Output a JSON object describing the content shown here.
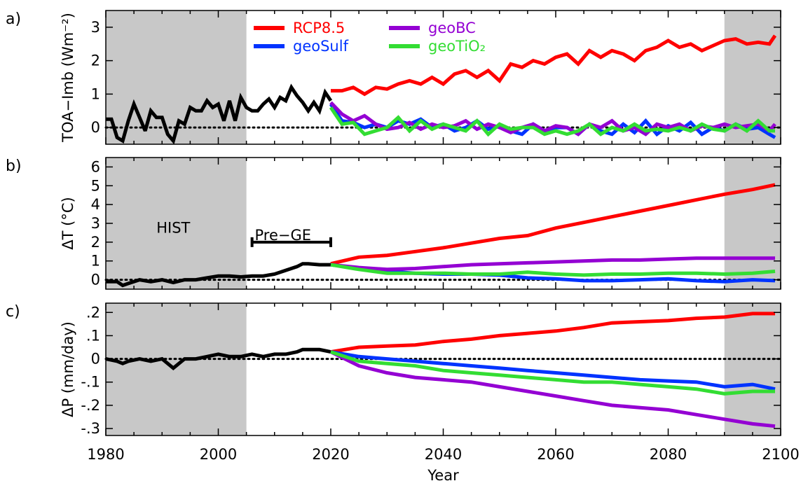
{
  "chart_data": [
    {
      "type": "line",
      "panel_label": "a)",
      "ylabel": "TOA−Imb (Wm⁻²)",
      "xlim": [
        1980,
        2100
      ],
      "ylim": [
        -0.5,
        3.5
      ],
      "yticks": [
        0,
        1,
        2,
        3
      ],
      "ytick_labels": [
        "0",
        "1",
        "2",
        "3"
      ],
      "shaded_ranges": [
        [
          1980,
          2005
        ],
        [
          2090,
          2100
        ]
      ],
      "zero_line": true,
      "legend": {
        "placement": "top-center",
        "columns": 2
      },
      "series": [
        {
          "name": "",
          "color": "#000000",
          "x": [
            1980,
            1981,
            1982,
            1983,
            1984,
            1985,
            1986,
            1987,
            1988,
            1989,
            1990,
            1991,
            1992,
            1993,
            1994,
            1995,
            1996,
            1997,
            1998,
            1999,
            2000,
            2001,
            2002,
            2003,
            2004,
            2005,
            2006,
            2007,
            2008,
            2009,
            2010,
            2011,
            2012,
            2013,
            2014,
            2015,
            2016,
            2017,
            2018,
            2019,
            2020
          ],
          "y": [
            0.25,
            0.25,
            -0.3,
            -0.4,
            0.2,
            0.7,
            0.3,
            -0.1,
            0.5,
            0.3,
            0.3,
            -0.2,
            -0.4,
            0.2,
            0.1,
            0.6,
            0.5,
            0.5,
            0.8,
            0.6,
            0.7,
            0.2,
            0.8,
            0.2,
            0.9,
            0.6,
            0.5,
            0.5,
            0.7,
            0.85,
            0.6,
            0.9,
            0.8,
            1.2,
            0.95,
            0.75,
            0.5,
            0.75,
            0.5,
            1.05,
            0.8
          ]
        },
        {
          "name": "RCP8.5",
          "color": "#ff0000",
          "x": [
            2020,
            2022,
            2024,
            2026,
            2028,
            2030,
            2032,
            2034,
            2036,
            2038,
            2040,
            2042,
            2044,
            2046,
            2048,
            2050,
            2052,
            2054,
            2056,
            2058,
            2060,
            2062,
            2064,
            2066,
            2068,
            2070,
            2072,
            2074,
            2076,
            2078,
            2080,
            2082,
            2084,
            2086,
            2088,
            2090,
            2092,
            2094,
            2096,
            2098,
            2099
          ],
          "y": [
            1.1,
            1.1,
            1.2,
            1.0,
            1.2,
            1.15,
            1.3,
            1.4,
            1.3,
            1.5,
            1.3,
            1.6,
            1.7,
            1.5,
            1.7,
            1.4,
            1.9,
            1.8,
            2.0,
            1.9,
            2.1,
            2.2,
            1.9,
            2.3,
            2.1,
            2.3,
            2.2,
            2.0,
            2.3,
            2.4,
            2.6,
            2.4,
            2.5,
            2.3,
            2.45,
            2.6,
            2.65,
            2.5,
            2.55,
            2.5,
            2.75
          ]
        },
        {
          "name": "geoSulf",
          "color": "#0033ff",
          "x": [
            2020,
            2022,
            2024,
            2026,
            2028,
            2030,
            2032,
            2034,
            2036,
            2038,
            2040,
            2042,
            2044,
            2046,
            2048,
            2050,
            2052,
            2054,
            2056,
            2058,
            2060,
            2062,
            2064,
            2066,
            2068,
            2070,
            2072,
            2074,
            2076,
            2078,
            2080,
            2082,
            2084,
            2086,
            2088,
            2090,
            2092,
            2094,
            2096,
            2098,
            2099
          ],
          "y": [
            0.7,
            0.2,
            0.15,
            0.0,
            0.1,
            0.0,
            0.2,
            0.1,
            0.25,
            0.0,
            0.1,
            -0.1,
            0.0,
            0.2,
            -0.05,
            0.05,
            -0.1,
            -0.2,
            0.1,
            -0.1,
            0.0,
            0.0,
            -0.2,
            0.1,
            -0.1,
            -0.2,
            0.1,
            -0.15,
            0.2,
            -0.2,
            0.05,
            -0.1,
            0.15,
            -0.2,
            0.0,
            -0.1,
            0.1,
            -0.05,
            0.0,
            -0.2,
            -0.3
          ]
        },
        {
          "name": "geoBC",
          "color": "#9400d3",
          "x": [
            2020,
            2022,
            2024,
            2026,
            2028,
            2030,
            2032,
            2034,
            2036,
            2038,
            2040,
            2042,
            2044,
            2046,
            2048,
            2050,
            2052,
            2054,
            2056,
            2058,
            2060,
            2062,
            2064,
            2066,
            2068,
            2070,
            2072,
            2074,
            2076,
            2078,
            2080,
            2082,
            2084,
            2086,
            2088,
            2090,
            2092,
            2094,
            2096,
            2098,
            2099
          ],
          "y": [
            0.75,
            0.4,
            0.2,
            0.35,
            0.1,
            -0.05,
            0.0,
            0.15,
            -0.05,
            0.1,
            0.0,
            0.05,
            0.2,
            -0.05,
            0.1,
            0.0,
            -0.15,
            0.0,
            0.1,
            -0.1,
            0.05,
            0.0,
            -0.2,
            0.1,
            0.0,
            0.2,
            -0.1,
            0.0,
            -0.2,
            0.1,
            0.0,
            0.1,
            -0.1,
            0.05,
            0.0,
            0.1,
            0.0,
            0.05,
            0.1,
            -0.1,
            0.1
          ]
        },
        {
          "name": "geoTiO₂",
          "color": "#33dd33",
          "x": [
            2020,
            2022,
            2024,
            2026,
            2028,
            2030,
            2032,
            2034,
            2036,
            2038,
            2040,
            2042,
            2044,
            2046,
            2048,
            2050,
            2052,
            2054,
            2056,
            2058,
            2060,
            2062,
            2064,
            2066,
            2068,
            2070,
            2072,
            2074,
            2076,
            2078,
            2080,
            2082,
            2084,
            2086,
            2088,
            2090,
            2092,
            2094,
            2096,
            2098,
            2099
          ],
          "y": [
            0.6,
            0.1,
            0.15,
            -0.2,
            -0.1,
            0.0,
            0.3,
            -0.1,
            0.2,
            -0.05,
            0.1,
            0.0,
            -0.1,
            0.2,
            -0.2,
            0.1,
            -0.05,
            0.0,
            0.0,
            -0.2,
            -0.1,
            -0.2,
            -0.1,
            0.1,
            -0.2,
            0.0,
            -0.1,
            0.1,
            -0.1,
            -0.05,
            -0.1,
            0.0,
            -0.1,
            0.1,
            -0.05,
            -0.1,
            0.1,
            -0.1,
            0.2,
            -0.1,
            -0.1
          ]
        }
      ]
    },
    {
      "type": "line",
      "panel_label": "b)",
      "ylabel": "ΔT  (°C)",
      "xlim": [
        1980,
        2100
      ],
      "ylim": [
        -0.5,
        6.5
      ],
      "yticks": [
        0,
        1,
        2,
        3,
        4,
        5,
        6
      ],
      "ytick_labels": [
        "0",
        "1",
        "2",
        "3",
        "4",
        "5",
        "6"
      ],
      "shaded_ranges": [
        [
          1980,
          2005
        ],
        [
          2090,
          2100
        ]
      ],
      "zero_line": true,
      "annotations": [
        {
          "text": "HIST",
          "x": 1992,
          "y": 2.8
        },
        {
          "text": "Pre−GE",
          "x": 2011.5,
          "y": 2.4,
          "bracket": [
            2006,
            2020
          ]
        }
      ],
      "series": [
        {
          "name": "",
          "color": "#000000",
          "x": [
            1980,
            1982,
            1983,
            1984,
            1986,
            1988,
            1990,
            1992,
            1994,
            1996,
            1998,
            2000,
            2002,
            2004,
            2006,
            2008,
            2010,
            2012,
            2014,
            2015,
            2016,
            2018,
            2020
          ],
          "y": [
            -0.1,
            -0.1,
            -0.3,
            -0.2,
            0.0,
            -0.1,
            0.0,
            -0.15,
            0.0,
            0.0,
            0.1,
            0.2,
            0.2,
            0.15,
            0.2,
            0.2,
            0.3,
            0.5,
            0.7,
            0.85,
            0.85,
            0.8,
            0.8
          ]
        },
        {
          "name": "RCP8.5",
          "color": "#ff0000",
          "x": [
            2020,
            2025,
            2030,
            2035,
            2040,
            2045,
            2050,
            2055,
            2060,
            2065,
            2070,
            2075,
            2080,
            2085,
            2090,
            2095,
            2099
          ],
          "y": [
            0.85,
            1.2,
            1.3,
            1.5,
            1.7,
            1.95,
            2.2,
            2.35,
            2.75,
            3.05,
            3.35,
            3.65,
            3.95,
            4.25,
            4.55,
            4.8,
            5.05
          ]
        },
        {
          "name": "geoSulf",
          "color": "#0033ff",
          "x": [
            2020,
            2025,
            2030,
            2035,
            2040,
            2045,
            2050,
            2055,
            2060,
            2065,
            2070,
            2075,
            2080,
            2085,
            2090,
            2095,
            2099
          ],
          "y": [
            0.8,
            0.6,
            0.45,
            0.35,
            0.3,
            0.3,
            0.25,
            0.1,
            0.05,
            -0.05,
            -0.05,
            0.0,
            0.05,
            -0.05,
            -0.1,
            0.0,
            -0.05
          ]
        },
        {
          "name": "geoBC",
          "color": "#9400d3",
          "x": [
            2020,
            2025,
            2030,
            2035,
            2040,
            2045,
            2050,
            2055,
            2060,
            2065,
            2070,
            2075,
            2080,
            2085,
            2090,
            2095,
            2099
          ],
          "y": [
            0.8,
            0.65,
            0.55,
            0.6,
            0.7,
            0.8,
            0.85,
            0.9,
            0.95,
            1.0,
            1.05,
            1.05,
            1.1,
            1.15,
            1.15,
            1.15,
            1.15
          ]
        },
        {
          "name": "geoTiO₂",
          "color": "#33dd33",
          "x": [
            2020,
            2025,
            2030,
            2035,
            2040,
            2045,
            2050,
            2055,
            2060,
            2065,
            2070,
            2075,
            2080,
            2085,
            2090,
            2095,
            2099
          ],
          "y": [
            0.8,
            0.55,
            0.35,
            0.35,
            0.35,
            0.3,
            0.3,
            0.4,
            0.3,
            0.25,
            0.3,
            0.3,
            0.35,
            0.35,
            0.3,
            0.35,
            0.45
          ]
        }
      ]
    },
    {
      "type": "line",
      "panel_label": "c)",
      "ylabel": "ΔP  (mm/day)",
      "xlim": [
        1980,
        2100
      ],
      "xlabel": "Year",
      "xticks": [
        1980,
        2000,
        2020,
        2040,
        2060,
        2080,
        2100
      ],
      "xtick_labels": [
        "1980",
        "2000",
        "2020",
        "2040",
        "2060",
        "2080",
        "2100"
      ],
      "ylim": [
        -0.33,
        0.24
      ],
      "yticks": [
        0.2,
        0.1,
        0,
        -0.1,
        -0.2,
        -0.3
      ],
      "ytick_labels": [
        ".2",
        ".1",
        "0",
        "-.1",
        "-.2",
        "-.3"
      ],
      "shaded_ranges": [
        [
          1980,
          2005
        ],
        [
          2090,
          2100
        ]
      ],
      "zero_line": true,
      "series": [
        {
          "name": "",
          "color": "#000000",
          "x": [
            1980,
            1982,
            1983,
            1984,
            1986,
            1988,
            1990,
            1991,
            1992,
            1994,
            1996,
            1998,
            2000,
            2002,
            2004,
            2006,
            2008,
            2010,
            2012,
            2014,
            2015,
            2016,
            2018,
            2020
          ],
          "y": [
            0.0,
            -0.01,
            -0.02,
            -0.01,
            0.0,
            -0.01,
            0.0,
            -0.02,
            -0.04,
            0.0,
            0.0,
            0.01,
            0.02,
            0.01,
            0.01,
            0.02,
            0.01,
            0.02,
            0.02,
            0.03,
            0.04,
            0.04,
            0.04,
            0.03
          ]
        },
        {
          "name": "RCP8.5",
          "color": "#ff0000",
          "x": [
            2020,
            2025,
            2030,
            2035,
            2040,
            2045,
            2050,
            2055,
            2060,
            2065,
            2070,
            2075,
            2080,
            2085,
            2090,
            2095,
            2099
          ],
          "y": [
            0.03,
            0.05,
            0.055,
            0.06,
            0.075,
            0.085,
            0.1,
            0.11,
            0.12,
            0.135,
            0.155,
            0.16,
            0.165,
            0.175,
            0.18,
            0.195,
            0.195
          ]
        },
        {
          "name": "geoSulf",
          "color": "#0033ff",
          "x": [
            2020,
            2025,
            2030,
            2035,
            2040,
            2045,
            2050,
            2055,
            2060,
            2065,
            2070,
            2075,
            2080,
            2085,
            2090,
            2095,
            2099
          ],
          "y": [
            0.03,
            0.01,
            0.0,
            -0.01,
            -0.02,
            -0.03,
            -0.04,
            -0.05,
            -0.06,
            -0.07,
            -0.08,
            -0.09,
            -0.095,
            -0.1,
            -0.12,
            -0.11,
            -0.13
          ]
        },
        {
          "name": "geoBC",
          "color": "#9400d3",
          "x": [
            2020,
            2025,
            2030,
            2035,
            2040,
            2045,
            2050,
            2055,
            2060,
            2065,
            2070,
            2075,
            2080,
            2085,
            2090,
            2095,
            2099
          ],
          "y": [
            0.03,
            -0.03,
            -0.06,
            -0.08,
            -0.09,
            -0.1,
            -0.12,
            -0.14,
            -0.16,
            -0.18,
            -0.2,
            -0.21,
            -0.22,
            -0.24,
            -0.26,
            -0.28,
            -0.29
          ]
        },
        {
          "name": "geoTiO₂",
          "color": "#33dd33",
          "x": [
            2020,
            2025,
            2030,
            2035,
            2040,
            2045,
            2050,
            2055,
            2060,
            2065,
            2070,
            2075,
            2080,
            2085,
            2090,
            2095,
            2099
          ],
          "y": [
            0.03,
            -0.01,
            -0.02,
            -0.03,
            -0.05,
            -0.06,
            -0.07,
            -0.08,
            -0.09,
            -0.1,
            -0.1,
            -0.11,
            -0.12,
            -0.13,
            -0.15,
            -0.14,
            -0.14
          ]
        }
      ]
    }
  ]
}
